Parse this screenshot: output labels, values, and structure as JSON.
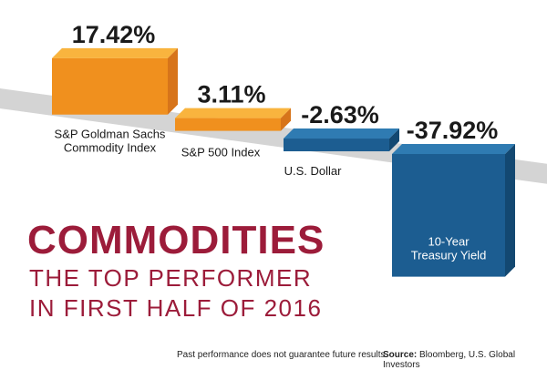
{
  "chart_data": {
    "type": "bar",
    "title": "Commodities the top performer in first half of 2016",
    "categories": [
      "S&P Goldman Sachs Commodity Index",
      "S&P 500 Index",
      "U.S. Dollar",
      "10-Year Treasury Yield"
    ],
    "category_lines": [
      [
        "S&P Goldman Sachs",
        "Commodity Index"
      ],
      [
        "S&P 500 Index"
      ],
      [
        "U.S. Dollar"
      ],
      [
        "10-Year",
        "Treasury Yield"
      ]
    ],
    "values": [
      17.42,
      3.11,
      -2.63,
      -37.92
    ],
    "value_labels": [
      "17.42%",
      "3.11%",
      "-2.63%",
      "-37.92%"
    ],
    "units": "%",
    "baseline": 0
  },
  "headline": {
    "title": "COMMODITIES",
    "subtitle_line1": "THE TOP PERFORMER",
    "subtitle_line2": "IN FIRST HALF OF 2016"
  },
  "footer": {
    "disclaimer": "Past performance does not guarantee future results.",
    "source_label": "Source:",
    "source_text": "Bloomberg, U.S. Global Investors"
  },
  "colors": {
    "positive_front": "#f0901e",
    "positive_top": "#f9b43e",
    "positive_side": "#d7741a",
    "negative_front": "#1c5d91",
    "negative_top": "#2f7bb2",
    "negative_side": "#134871",
    "baseline_band": "#d4d4d4",
    "headline": "#9c1c3a"
  }
}
